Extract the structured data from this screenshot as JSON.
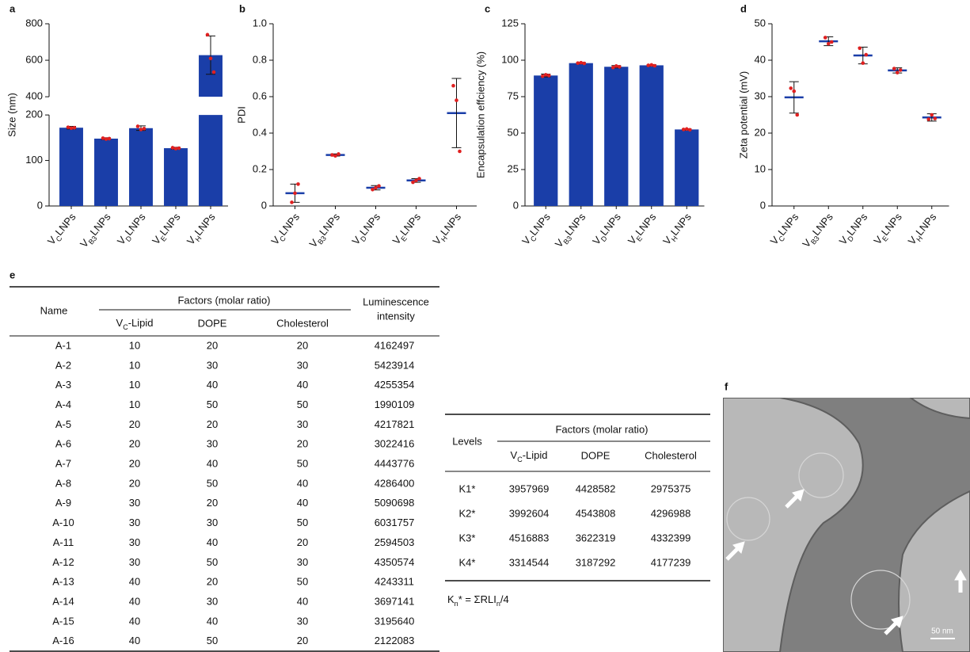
{
  "chart_data": [
    {
      "type": "bar",
      "panel": "a",
      "ylabel": "Size (nm)",
      "categories": [
        [
          "V",
          "C",
          "LNPs"
        ],
        [
          "V",
          "B3",
          "LNPs"
        ],
        [
          "V",
          "D",
          "LNPs"
        ],
        [
          "V",
          "E",
          "LNPs"
        ],
        [
          "V",
          "H",
          "LNPs"
        ]
      ],
      "values": [
        172,
        148,
        171,
        127,
        628
      ],
      "errors": [
        3,
        2,
        5,
        2,
        105
      ],
      "points": [
        [
          173,
          171,
          172
        ],
        [
          149,
          147,
          148
        ],
        [
          175,
          168,
          170
        ],
        [
          128,
          126,
          127
        ],
        [
          740,
          610,
          535
        ]
      ],
      "color": "#1a3ea8",
      "point_color": "#e02020",
      "ylim": [
        0,
        800
      ],
      "ybreak": [
        200,
        400
      ],
      "yticks": [
        0,
        100,
        200,
        400,
        600,
        800
      ]
    },
    {
      "type": "dot",
      "panel": "b",
      "ylabel": "PDI",
      "categories": [
        [
          "V",
          "C",
          "LNPs"
        ],
        [
          "V",
          "B3",
          "LNPs"
        ],
        [
          "V",
          "D",
          "LNPs"
        ],
        [
          "V",
          "E",
          "LNPs"
        ],
        [
          "V",
          "H",
          "LNPs"
        ]
      ],
      "values": [
        0.07,
        0.28,
        0.1,
        0.14,
        0.51
      ],
      "errors": [
        0.05,
        0.006,
        0.012,
        0.01,
        0.19
      ],
      "points": [
        [
          0.02,
          0.07,
          0.12
        ],
        [
          0.28,
          0.275,
          0.285
        ],
        [
          0.09,
          0.1,
          0.11
        ],
        [
          0.13,
          0.14,
          0.15
        ],
        [
          0.66,
          0.58,
          0.3
        ]
      ],
      "color": "#1a3ea8",
      "point_color": "#e02020",
      "ylim": [
        0,
        1
      ],
      "yticks": [
        0,
        0.2,
        0.4,
        0.6,
        0.8,
        {
          "value": 1,
          "label": "1.0"
        }
      ]
    },
    {
      "type": "bar",
      "panel": "c",
      "ylabel": "Encapsulation effciency (%)",
      "categories": [
        [
          "V",
          "C",
          "LNPs"
        ],
        [
          "V",
          "B3",
          "LNPs"
        ],
        [
          "V",
          "D",
          "LNPs"
        ],
        [
          "V",
          "E",
          "LNPs"
        ],
        [
          "V",
          "H",
          "LNPs"
        ]
      ],
      "values": [
        89.5,
        98,
        95.5,
        96.5,
        52.5
      ],
      "errors": [
        1,
        0.5,
        0.8,
        0.5,
        0.5
      ],
      "points": [
        [
          89,
          90,
          89.5
        ],
        [
          98,
          98.3,
          97.8
        ],
        [
          95,
          96,
          95.5
        ],
        [
          96.5,
          96.8,
          96.2
        ],
        [
          52.5,
          52.8,
          52.3
        ]
      ],
      "color": "#1a3ea8",
      "point_color": "#e02020",
      "ylim": [
        0,
        125
      ],
      "yticks": [
        0,
        25,
        50,
        75,
        100,
        125
      ]
    },
    {
      "type": "dot",
      "panel": "d",
      "ylabel": "Zeta potential (mV)",
      "categories": [
        [
          "V",
          "C",
          "LNPs"
        ],
        [
          "V",
          "B3",
          "LNPs"
        ],
        [
          "V",
          "D",
          "LNPs"
        ],
        [
          "V",
          "E",
          "LNPs"
        ],
        [
          "V",
          "H",
          "LNPs"
        ]
      ],
      "values": [
        29.8,
        45.2,
        41.3,
        37.2,
        24.3
      ],
      "errors": [
        4.3,
        1.2,
        2.3,
        0.7,
        1
      ],
      "points": [
        [
          32.3,
          31.5,
          25
        ],
        [
          46.2,
          44.5,
          45
        ],
        [
          43.3,
          39.2,
          41.5
        ],
        [
          37.7,
          36.6,
          37.3
        ],
        [
          23.8,
          25,
          24
        ]
      ],
      "color": "#1a3ea8",
      "point_color": "#e02020",
      "ylim": [
        0,
        50
      ],
      "yticks": [
        0,
        10,
        20,
        30,
        40,
        50
      ]
    }
  ],
  "table_e": {
    "panel": "e",
    "name": "Name",
    "factors": "Factors (molar ratio)",
    "sub": [
      [
        "V",
        "C",
        "-Lipid"
      ],
      "DOPE",
      "Cholesterol"
    ],
    "response": [
      "Luminescence",
      "intensity"
    ],
    "rows": [
      [
        "A-1",
        10,
        20,
        20,
        4162497
      ],
      [
        "A-2",
        10,
        30,
        30,
        5423914
      ],
      [
        "A-3",
        10,
        40,
        40,
        4255354
      ],
      [
        "A-4",
        10,
        50,
        50,
        1990109
      ],
      [
        "A-5",
        20,
        20,
        30,
        4217821
      ],
      [
        "A-6",
        20,
        30,
        20,
        3022416
      ],
      [
        "A-7",
        20,
        40,
        50,
        4443776
      ],
      [
        "A-8",
        20,
        50,
        40,
        4286400
      ],
      [
        "A-9",
        30,
        20,
        40,
        5090698
      ],
      [
        "A-10",
        30,
        30,
        50,
        6031757
      ],
      [
        "A-11",
        30,
        40,
        20,
        2594503
      ],
      [
        "A-12",
        30,
        50,
        30,
        4350574
      ],
      [
        "A-13",
        40,
        20,
        50,
        4243311
      ],
      [
        "A-14",
        40,
        30,
        40,
        3697141
      ],
      [
        "A-15",
        40,
        40,
        30,
        3195640
      ],
      [
        "A-16",
        40,
        50,
        20,
        2122083
      ]
    ]
  },
  "table_k": {
    "levels": "Levels",
    "factors": "Factors (molar ratio)",
    "sub": [
      [
        "V",
        "C",
        "-Lipid"
      ],
      "DOPE",
      "Cholesterol"
    ],
    "rows": [
      [
        "K1*",
        3957969,
        4428582,
        2975375
      ],
      [
        "K2*",
        3992604,
        4543808,
        4296988
      ],
      [
        "K3*",
        4516883,
        3622319,
        4332399
      ],
      [
        "K4*",
        3314544,
        3187292,
        4177239
      ]
    ],
    "note": [
      "K",
      "n",
      "* = ΣRLI",
      "n",
      "/4"
    ]
  },
  "image_f": {
    "panel": "f",
    "scale_bar": "50 nm"
  }
}
